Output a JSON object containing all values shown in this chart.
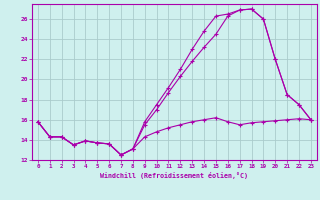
{
  "xlabel": "Windchill (Refroidissement éolien,°C)",
  "background_color": "#cff0ee",
  "grid_color": "#aacccc",
  "line_color": "#aa00aa",
  "xlim": [
    -0.5,
    23.5
  ],
  "ylim": [
    12,
    27.5
  ],
  "yticks": [
    12,
    14,
    16,
    18,
    20,
    22,
    24,
    26
  ],
  "xticks": [
    0,
    1,
    2,
    3,
    4,
    5,
    6,
    7,
    8,
    9,
    10,
    11,
    12,
    13,
    14,
    15,
    16,
    17,
    18,
    19,
    20,
    21,
    22,
    23
  ],
  "line1_x": [
    0,
    1,
    2,
    3,
    4,
    5,
    6,
    7,
    8,
    9,
    10,
    11,
    12,
    13,
    14,
    15,
    16,
    17,
    18,
    19,
    20,
    21,
    22,
    23
  ],
  "line1_y": [
    15.8,
    14.3,
    14.3,
    13.5,
    13.9,
    13.7,
    13.6,
    12.5,
    13.1,
    14.3,
    14.8,
    15.2,
    15.5,
    15.8,
    16.0,
    16.2,
    15.8,
    15.5,
    15.7,
    15.8,
    15.9,
    16.0,
    16.1,
    16.0
  ],
  "line2_x": [
    0,
    1,
    2,
    3,
    4,
    5,
    6,
    7,
    8,
    9,
    10,
    11,
    12,
    13,
    14,
    15,
    16,
    17,
    18,
    19,
    20,
    21,
    22,
    23
  ],
  "line2_y": [
    15.8,
    14.3,
    14.3,
    13.5,
    13.9,
    13.7,
    13.6,
    12.5,
    13.1,
    15.8,
    17.5,
    19.2,
    21.0,
    23.0,
    24.8,
    26.3,
    26.5,
    26.9,
    27.0,
    26.0,
    22.0,
    18.5,
    17.5,
    16.0
  ],
  "line3_x": [
    0,
    1,
    2,
    3,
    4,
    5,
    6,
    7,
    8,
    9,
    10,
    11,
    12,
    13,
    14,
    15,
    16,
    17,
    18,
    19,
    20,
    21,
    22,
    23
  ],
  "line3_y": [
    15.8,
    14.3,
    14.3,
    13.5,
    13.9,
    13.7,
    13.6,
    12.5,
    13.1,
    15.5,
    17.0,
    18.7,
    20.3,
    21.8,
    23.2,
    24.5,
    26.3,
    26.9,
    27.0,
    26.0,
    22.0,
    18.5,
    17.5,
    16.0
  ]
}
